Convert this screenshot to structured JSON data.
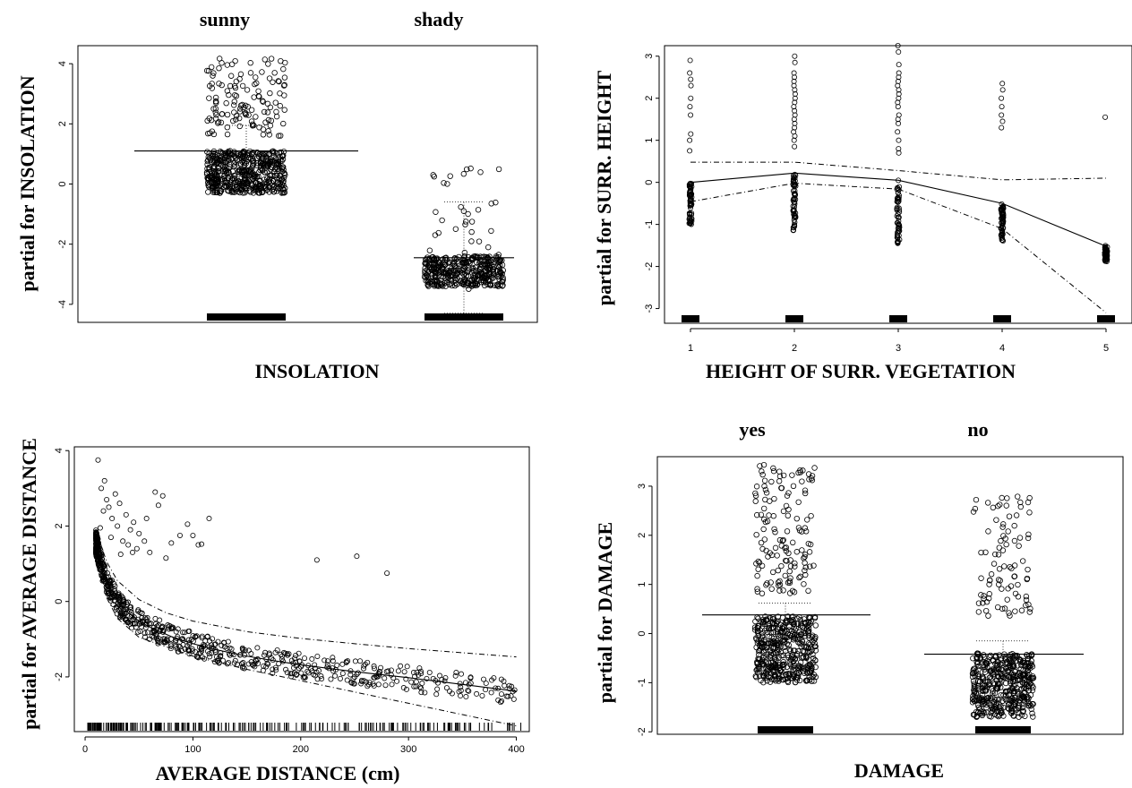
{
  "chart_data": [
    {
      "type": "scatter",
      "id": "insolation",
      "xlabel": "INSOLATION",
      "ylabel": "partial for INSOLATION",
      "categories": [
        "sunny",
        "shady"
      ],
      "ylim": [
        -4.6,
        4.6
      ],
      "yticks": [
        -4,
        -2,
        0,
        2,
        4
      ],
      "ytick_labels": [
        "-4",
        "-2",
        "0",
        "2",
        "4"
      ],
      "levels": [
        1.1,
        -2.45
      ],
      "upper_se": [
        1.95,
        -0.6
      ],
      "lower_se": [
        0.95,
        -4.3
      ],
      "dense_band": [
        [
          -0.3,
          1.1
        ],
        [
          -3.4,
          -2.4
        ]
      ],
      "outlier_band": [
        [
          1.6,
          4.2
        ],
        [
          -3.5,
          0.6
        ]
      ]
    },
    {
      "type": "line",
      "id": "surr_height",
      "xlabel": "HEIGHT OF SURR. VEGETATION",
      "ylabel": "partial for SURR. HEIGHT",
      "x": [
        1,
        2,
        3,
        4,
        5
      ],
      "xlim": [
        0.75,
        5.25
      ],
      "ylim": [
        -3.35,
        3.25
      ],
      "yticks": [
        -3,
        -2,
        -1,
        0,
        1,
        2,
        3
      ],
      "ytick_labels": [
        "-3",
        "-2",
        "-1",
        "0",
        "1",
        "2",
        "3"
      ],
      "fit": [
        0.0,
        0.22,
        0.05,
        -0.5,
        -1.52
      ],
      "upper_se": [
        0.48,
        0.48,
        0.28,
        0.06,
        0.1
      ],
      "lower_se": [
        -0.46,
        -0.02,
        -0.16,
        -1.1,
        -3.1
      ],
      "dense_band": [
        [
          -1.05,
          0.0
        ],
        [
          -1.15,
          0.2
        ],
        [
          -1.5,
          0.05
        ],
        [
          -1.4,
          -0.5
        ],
        [
          -1.9,
          -1.5
        ]
      ],
      "outliers": [
        [
          2.9,
          2.6,
          2.45,
          2.3,
          2.0,
          1.8,
          1.6,
          1.15,
          1.0,
          0.75
        ],
        [
          3.0,
          2.85,
          2.6,
          2.5,
          2.4,
          2.3,
          2.2,
          2.1,
          2.0,
          1.9,
          1.8,
          1.7,
          1.6,
          1.5,
          1.4,
          1.3,
          1.2,
          1.1,
          1.0,
          0.85
        ],
        [
          3.25,
          3.1,
          2.8,
          2.6,
          2.5,
          2.4,
          2.3,
          2.2,
          2.1,
          2.0,
          1.9,
          1.8,
          1.6,
          1.5,
          1.4,
          1.2,
          1.0,
          0.8,
          0.7
        ],
        [
          2.35,
          2.2,
          2.0,
          1.8,
          1.6,
          1.45,
          1.3
        ],
        [
          1.55
        ]
      ]
    },
    {
      "type": "scatter",
      "id": "avg_distance",
      "xlabel": "AVERAGE DISTANCE (cm)",
      "ylabel": "partial for AVERAGE DISTANCE",
      "xlim": [
        -10,
        412
      ],
      "ylim": [
        -3.45,
        4.1
      ],
      "xticks": [
        0,
        100,
        200,
        300,
        400
      ],
      "xtick_labels": [
        "0",
        "100",
        "200",
        "300",
        "400"
      ],
      "yticks": [
        -2,
        0,
        2,
        4
      ],
      "ytick_labels": [
        "-2",
        "0",
        "2",
        "4"
      ],
      "fit": {
        "x": [
          10,
          15,
          20,
          30,
          40,
          50,
          60,
          80,
          100,
          125,
          150,
          175,
          200,
          250,
          300,
          350,
          400
        ],
        "y": [
          1.6,
          1.0,
          0.55,
          0.0,
          -0.3,
          -0.52,
          -0.68,
          -0.93,
          -1.12,
          -1.3,
          -1.45,
          -1.57,
          -1.68,
          -1.86,
          -2.02,
          -2.2,
          -2.38
        ]
      },
      "upper_se": {
        "x": [
          10,
          20,
          30,
          50,
          75,
          100,
          150,
          200,
          250,
          300,
          350,
          400
        ],
        "y": [
          1.9,
          1.05,
          0.55,
          0.05,
          -0.3,
          -0.52,
          -0.8,
          -0.98,
          -1.12,
          -1.25,
          -1.36,
          -1.47
        ]
      },
      "lower_se": {
        "x": [
          10,
          20,
          30,
          50,
          75,
          100,
          150,
          200,
          250,
          300,
          350,
          400
        ],
        "y": [
          1.3,
          0.1,
          -0.45,
          -0.95,
          -1.2,
          -1.45,
          -1.8,
          -2.1,
          -2.4,
          -2.7,
          -3.0,
          -3.3
        ]
      },
      "outliers": [
        [
          12,
          3.75
        ],
        [
          15,
          3.0
        ],
        [
          17,
          2.4
        ],
        [
          18,
          3.2
        ],
        [
          20,
          2.7
        ],
        [
          22,
          2.5
        ],
        [
          25,
          2.2
        ],
        [
          28,
          2.85
        ],
        [
          30,
          2.0
        ],
        [
          32,
          2.6
        ],
        [
          35,
          1.6
        ],
        [
          38,
          2.3
        ],
        [
          40,
          1.5
        ],
        [
          42,
          1.9
        ],
        [
          45,
          2.1
        ],
        [
          48,
          1.4
        ],
        [
          50,
          1.8
        ],
        [
          55,
          1.6
        ],
        [
          57,
          2.2
        ],
        [
          60,
          1.3
        ],
        [
          65,
          2.9
        ],
        [
          68,
          2.55
        ],
        [
          72,
          2.8
        ],
        [
          75,
          1.15
        ],
        [
          80,
          1.55
        ],
        [
          88,
          1.75
        ],
        [
          95,
          2.05
        ],
        [
          100,
          1.75
        ],
        [
          105,
          1.5
        ],
        [
          108,
          1.52
        ],
        [
          115,
          2.2
        ],
        [
          215,
          1.1
        ],
        [
          252,
          1.2
        ],
        [
          280,
          0.75
        ],
        [
          14,
          1.95
        ],
        [
          24,
          1.7
        ],
        [
          33,
          1.25
        ],
        [
          44,
          1.3
        ]
      ]
    },
    {
      "type": "scatter",
      "id": "damage",
      "xlabel": "DAMAGE",
      "ylabel": "partial for DAMAGE",
      "categories": [
        "yes",
        "no"
      ],
      "ylim": [
        -2.05,
        3.6
      ],
      "yticks": [
        -2,
        -1,
        0,
        1,
        2,
        3
      ],
      "ytick_labels": [
        "-2",
        "-1",
        "0",
        "1",
        "2",
        "3"
      ],
      "levels": [
        0.38,
        -0.42
      ],
      "upper_se": [
        0.62,
        -0.15
      ],
      "lower_se": [
        -0.55,
        -1.4
      ],
      "dense_band": [
        [
          -1.0,
          0.35
        ],
        [
          -1.7,
          -0.4
        ]
      ],
      "outlier_band": [
        [
          0.7,
          3.45
        ],
        [
          0.3,
          2.8
        ]
      ]
    }
  ]
}
